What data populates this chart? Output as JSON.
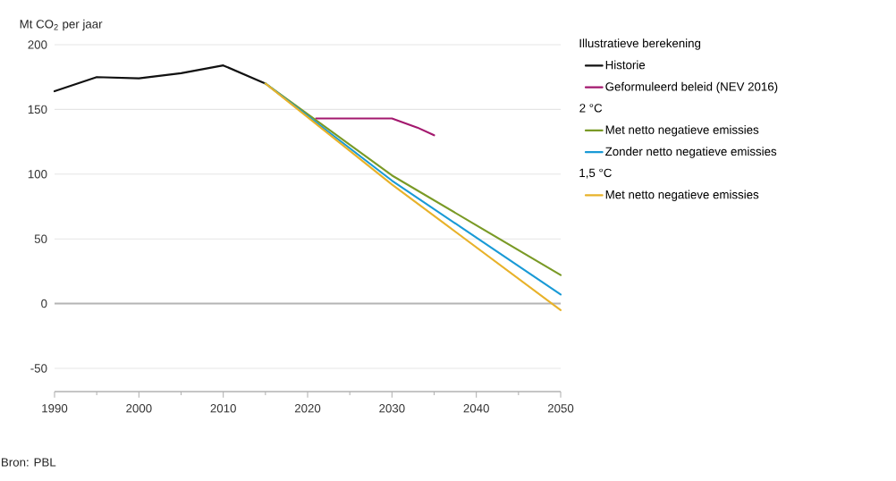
{
  "chart_data": {
    "type": "line",
    "ylabel": "Mt CO$_{2}$ per jaar",
    "legend_title": "Illustratieve berekening",
    "xlim": [
      1990,
      2050
    ],
    "xticks": [
      1990,
      2000,
      2010,
      2020,
      2030,
      2040,
      2050
    ],
    "ylim": [
      -68,
      200
    ],
    "yticks": [
      -50,
      0,
      50,
      100,
      150,
      200
    ],
    "grid": "y",
    "legend": "right",
    "line_style": "solid",
    "ref_lines": [
      {
        "axis": "y",
        "value": 0,
        "color": "#b4b4b4"
      }
    ],
    "annotations": [
      "2 °C",
      "1,5 °C",
      "Bron: PBL"
    ],
    "series": [
      {
        "name": "Historie",
        "color": "#111111",
        "x": [
          1990,
          1995,
          2000,
          2005,
          2010,
          2015
        ],
        "values": [
          164,
          175,
          174,
          178,
          184,
          170
        ]
      },
      {
        "name": "Geformuleerd beleid (NEV 2016)",
        "color": "#a3186e",
        "x": [
          2021,
          2030,
          2033,
          2035
        ],
        "values": [
          143,
          143,
          136,
          130
        ]
      },
      {
        "name": "Met netto negatieve emissies",
        "color": "#7a9a26",
        "x": [
          2015,
          2030,
          2050
        ],
        "values": [
          170,
          99,
          22
        ]
      },
      {
        "name": "Zonder netto negatieve emissies",
        "color": "#1a9ad6",
        "x": [
          2015,
          2030,
          2050
        ],
        "values": [
          170,
          95,
          7
        ]
      },
      {
        "name": "Met netto negatieve emissies",
        "color": "#e8b22a",
        "x": [
          2015,
          2030,
          2050
        ],
        "values": [
          170,
          92,
          -5
        ]
      }
    ]
  }
}
